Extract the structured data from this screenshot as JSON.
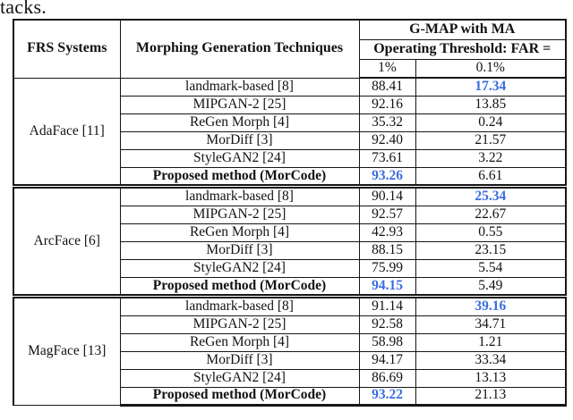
{
  "page": {
    "caption_fragment": "tacks."
  },
  "colors": {
    "highlight_blue": "#3a6de0",
    "text_black": "#121212",
    "rule_black": "#161616"
  },
  "table": {
    "header": {
      "col_frs": "FRS Systems",
      "col_morph": "Morphing Generation Techniques",
      "span_top": "G-MAP with MA",
      "span_mid": "Operating Threshold: FAR =",
      "far_1": "1%",
      "far_01": "0.1%"
    },
    "groups": [
      {
        "system": "AdaFace [11]",
        "rows": [
          {
            "technique": "landmark-based [8]",
            "far1": "88.41",
            "far01": "17.34",
            "highlight_far01": true
          },
          {
            "technique": "MIPGAN-2 [25]",
            "far1": "92.16",
            "far01": "13.85"
          },
          {
            "technique": "ReGen Morph [4]",
            "far1": "35.32",
            "far01": "0.24"
          },
          {
            "technique": "MorDiff [3]",
            "far1": "92.40",
            "far01": "21.57"
          },
          {
            "technique": "StyleGAN2 [24]",
            "far1": "73.61",
            "far01": "3.22"
          },
          {
            "technique": "Proposed method (MorCode)",
            "far1": "93.26",
            "far01": "6.61",
            "bold": true,
            "highlight_far1": true
          }
        ]
      },
      {
        "system": "ArcFace [6]",
        "rows": [
          {
            "technique": "landmark-based [8]",
            "far1": "90.14",
            "far01": "25.34",
            "highlight_far01": true
          },
          {
            "technique": "MIPGAN-2 [25]",
            "far1": "92.57",
            "far01": "22.67"
          },
          {
            "technique": "ReGen Morph [4]",
            "far1": "42.93",
            "far01": "0.55"
          },
          {
            "technique": "MorDiff [3]",
            "far1": "88.15",
            "far01": "23.15"
          },
          {
            "technique": "StyleGAN2 [24]",
            "far1": "75.99",
            "far01": "5.54"
          },
          {
            "technique": "Proposed method (MorCode)",
            "far1": "94.15",
            "far01": "5.49",
            "bold": true,
            "highlight_far1": true
          }
        ]
      },
      {
        "system": "MagFace [13]",
        "rows": [
          {
            "technique": "landmark-based [8]",
            "far1": "91.14",
            "far01": "39.16",
            "highlight_far01": true
          },
          {
            "technique": "MIPGAN-2 [25]",
            "far1": "92.58",
            "far01": "34.71"
          },
          {
            "technique": "ReGen Morph [4]",
            "far1": "58.98",
            "far01": "1.21"
          },
          {
            "technique": "MorDiff [3]",
            "far1": "94.17",
            "far01": "33.34"
          },
          {
            "technique": "StyleGAN2 [24]",
            "far1": "86.69",
            "far01": "13.13"
          },
          {
            "technique": "Proposed method (MorCode)",
            "far1": "93.22",
            "far01": "21.13",
            "bold": true,
            "highlight_far1": true
          }
        ]
      }
    ]
  }
}
